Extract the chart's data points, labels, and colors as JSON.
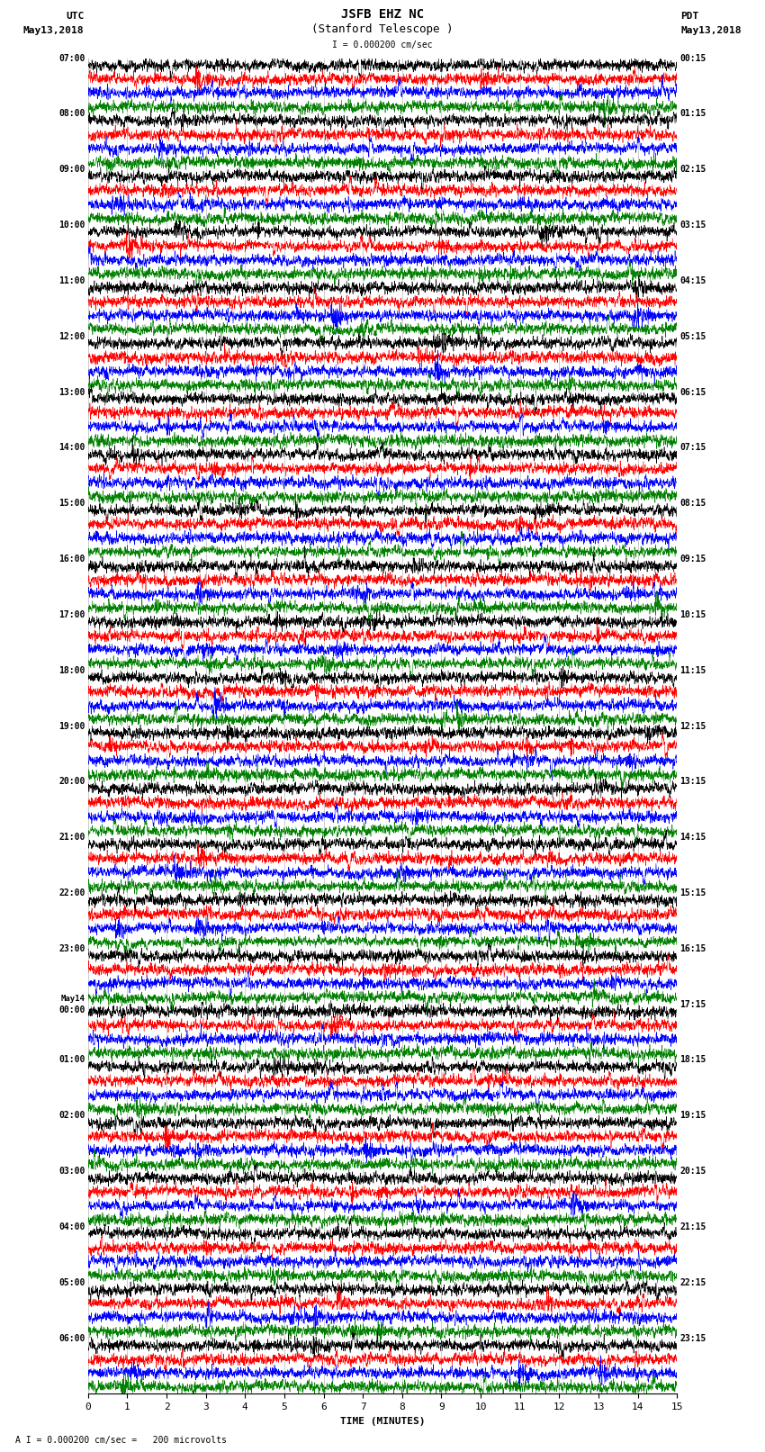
{
  "title_line1": "JSFB EHZ NC",
  "title_line2": "(Stanford Telescope )",
  "scale_text": "I = 0.000200 cm/sec",
  "left_label_top": "UTC",
  "left_label_date": "May13,2018",
  "right_label_top": "PDT",
  "right_label_date": "May13,2018",
  "xlabel": "TIME (MINUTES)",
  "footer": "A I = 0.000200 cm/sec =   200 microvolts",
  "utc_times": [
    "07:00",
    "08:00",
    "09:00",
    "10:00",
    "11:00",
    "12:00",
    "13:00",
    "14:00",
    "15:00",
    "16:00",
    "17:00",
    "18:00",
    "19:00",
    "20:00",
    "21:00",
    "22:00",
    "23:00",
    "May14\n00:00",
    "01:00",
    "02:00",
    "03:00",
    "04:00",
    "05:00",
    "06:00"
  ],
  "pdt_times": [
    "00:15",
    "01:15",
    "02:15",
    "03:15",
    "04:15",
    "05:15",
    "06:15",
    "07:15",
    "08:15",
    "09:15",
    "10:15",
    "11:15",
    "12:15",
    "13:15",
    "14:15",
    "15:15",
    "16:15",
    "17:15",
    "18:15",
    "19:15",
    "20:15",
    "21:15",
    "22:15",
    "23:15"
  ],
  "trace_colors": [
    "black",
    "red",
    "blue",
    "green"
  ],
  "n_rows": 96,
  "traces_per_hour": 4,
  "n_hours": 24,
  "xmin": 0,
  "xmax": 15,
  "bg_color": "white",
  "grid_color": "#888888",
  "font_name": "monospace",
  "title_fontsize": 10,
  "label_fontsize": 8,
  "tick_fontsize": 7,
  "dpi": 100,
  "fig_width": 8.5,
  "fig_height": 16.13
}
